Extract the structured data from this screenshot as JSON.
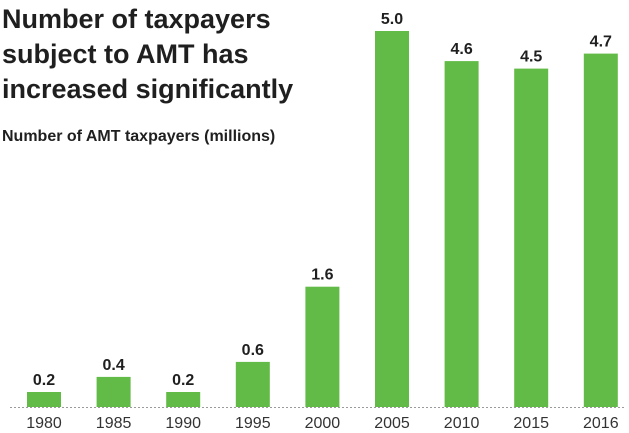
{
  "title_lines": [
    "Number of taxpayers",
    "subject to AMT has",
    "increased significantly"
  ],
  "subtitle": "Number of AMT taxpayers (millions)",
  "chart_data": {
    "type": "bar",
    "title": "Number of taxpayers subject to AMT has increased significantly",
    "subtitle": "Number of AMT taxpayers (millions)",
    "categories": [
      "1980",
      "1985",
      "1990",
      "1995",
      "2000",
      "2005",
      "2010",
      "2015",
      "2016"
    ],
    "values": [
      0.2,
      0.4,
      0.2,
      0.6,
      1.6,
      5.0,
      4.6,
      4.5,
      4.7
    ],
    "value_labels": [
      "0.2",
      "0.4",
      "0.2",
      "0.6",
      "1.6",
      "5.0",
      "4.6",
      "4.5",
      "4.7"
    ],
    "xlabel": "",
    "ylabel": "",
    "ylim": [
      0,
      5.0
    ],
    "grid": false,
    "legend": "none",
    "bar_color": "#62bb46"
  }
}
